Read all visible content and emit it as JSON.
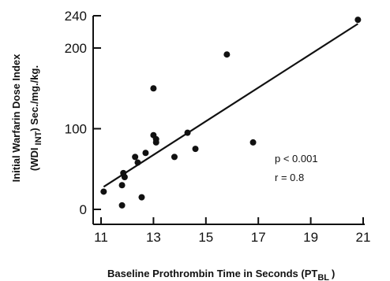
{
  "chart_data": {
    "type": "scatter",
    "xlabel": "Baseline Prothrombin Time in Seconds (PT",
    "xlabel_sub": "BL",
    "xlabel_close": ")",
    "ylabel_line1": "Initial Warfarin Dose Index",
    "ylabel_line2_pre": "(WDI",
    "ylabel_line2_sub": "INT",
    "ylabel_line2_post": ") Sec./mg./kg.",
    "xlim": [
      11,
      21
    ],
    "ylim": [
      0,
      240
    ],
    "x_ticks": [
      11,
      13,
      15,
      17,
      19,
      21
    ],
    "y_ticks": [
      0,
      100,
      200,
      240
    ],
    "grid": false,
    "points": [
      {
        "x": 11.1,
        "y": 22
      },
      {
        "x": 11.8,
        "y": 5
      },
      {
        "x": 11.8,
        "y": 30
      },
      {
        "x": 11.85,
        "y": 45
      },
      {
        "x": 11.9,
        "y": 40
      },
      {
        "x": 12.3,
        "y": 65
      },
      {
        "x": 12.4,
        "y": 58
      },
      {
        "x": 12.55,
        "y": 15
      },
      {
        "x": 12.7,
        "y": 70
      },
      {
        "x": 13.0,
        "y": 150
      },
      {
        "x": 13.0,
        "y": 92
      },
      {
        "x": 13.1,
        "y": 83
      },
      {
        "x": 13.1,
        "y": 87
      },
      {
        "x": 13.8,
        "y": 65
      },
      {
        "x": 14.3,
        "y": 95
      },
      {
        "x": 14.6,
        "y": 75
      },
      {
        "x": 15.8,
        "y": 192
      },
      {
        "x": 16.8,
        "y": 83
      },
      {
        "x": 20.8,
        "y": 235
      }
    ],
    "regression_line": {
      "x": [
        11.1,
        20.8
      ],
      "y": [
        28,
        230
      ]
    },
    "annotations": [
      "p < 0.001",
      "r = 0.8"
    ]
  }
}
